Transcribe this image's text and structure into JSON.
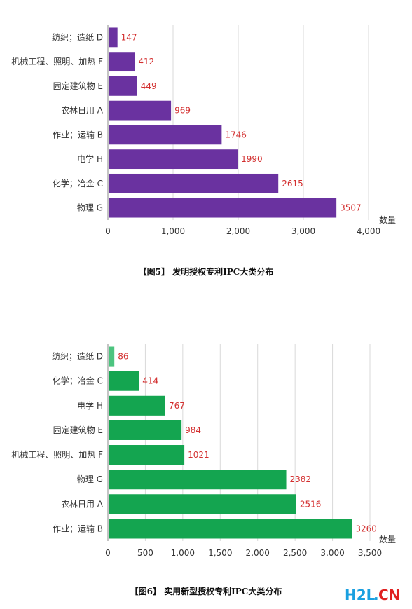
{
  "chart_data": [
    {
      "type": "bar",
      "orientation": "horizontal",
      "caption": "【图5】 发明授权专利IPC大类分布",
      "categories": [
        "纺织；造纸 D",
        "机械工程、照明、加热 F",
        "固定建筑物 E",
        "农林日用 A",
        "作业；运输 B",
        "电学 H",
        "化学；冶金 C",
        "物理 G"
      ],
      "values": [
        147,
        412,
        449,
        969,
        1746,
        1990,
        2615,
        3507
      ],
      "value_axis_label": "数量",
      "xlim": [
        0,
        4000
      ],
      "ticks": [
        0,
        1000,
        2000,
        3000,
        4000
      ],
      "tick_labels": [
        "0",
        "1,000",
        "2,000",
        "3,000",
        "4,000"
      ],
      "bar_color": "#6a32a0",
      "first_bar_color": "#6a32a0",
      "grid": true,
      "data_label_color": "#d32f2f"
    },
    {
      "type": "bar",
      "orientation": "horizontal",
      "caption": "【图6】  实用新型授权专利IPC大类分布",
      "categories": [
        "纺织；造纸 D",
        "化学；冶金 C",
        "电学 H",
        "固定建筑物 E",
        "机械工程、照明、加热 F",
        "物理 G",
        "农林日用 A",
        "作业；运输 B"
      ],
      "values": [
        86,
        414,
        767,
        984,
        1021,
        2382,
        2516,
        3260
      ],
      "value_axis_label": "数量",
      "xlim": [
        0,
        3500
      ],
      "ticks": [
        0,
        500,
        1000,
        1500,
        2000,
        2500,
        3000,
        3500
      ],
      "tick_labels": [
        "0",
        "500",
        "1,000",
        "1,500",
        "2,000",
        "2,500",
        "3,000",
        "3,500"
      ],
      "bar_color": "#14a550",
      "first_bar_color": "#4cc47f",
      "grid": true,
      "data_label_color": "#d32f2f"
    }
  ],
  "watermark": {
    "text_h2l": "H2L",
    "text_dot": ".",
    "text_cn": "CN",
    "h2l_color": "#1aa0e0",
    "cn_color": "#e02020"
  }
}
